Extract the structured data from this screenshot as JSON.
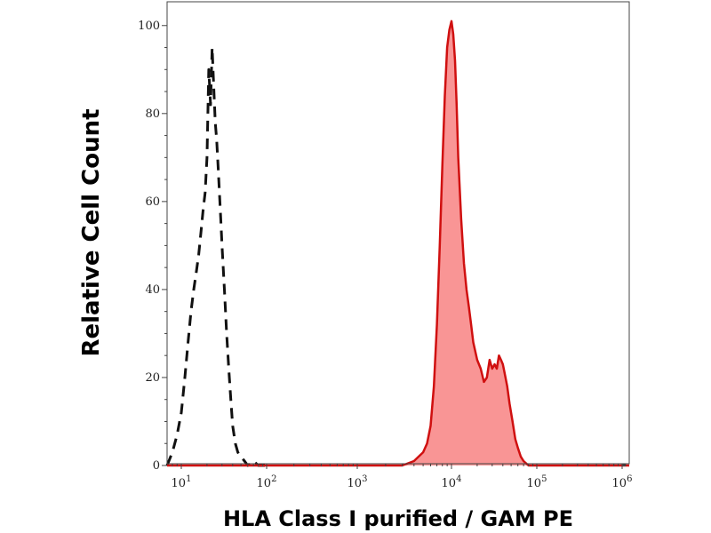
{
  "chart_data": {
    "type": "area",
    "xlabel": "HLA Class I purified / GAM PE",
    "ylabel": "Relative Cell Count",
    "xscale": "log",
    "xlim": [
      7,
      110000000
    ],
    "ylim": [
      0,
      105
    ],
    "x_tick_labels": [
      {
        "base": "10",
        "exp": "1",
        "value": 10
      },
      {
        "base": "10",
        "exp": "2",
        "value": 100
      },
      {
        "base": "10",
        "exp": "3",
        "value": 1000
      },
      {
        "base": "10",
        "exp": "4",
        "value": 10000
      },
      {
        "base": "10",
        "exp": "5",
        "value": 100000
      },
      {
        "base": "10",
        "exp": "6",
        "value": 1000000
      }
    ],
    "y_ticks": [
      0,
      20,
      40,
      60,
      80,
      100
    ],
    "grid": false,
    "series": [
      {
        "style": "dashed-line",
        "color": "#111111",
        "x": [
          7,
          8,
          9,
          10,
          11,
          12,
          13,
          14,
          15,
          16,
          17,
          18,
          19,
          20,
          21,
          22,
          23,
          24,
          25,
          26,
          27,
          28,
          29,
          30,
          32,
          34,
          36,
          38,
          40,
          43,
          46,
          50,
          55,
          60,
          70,
          80,
          90,
          100
        ],
        "values": [
          0,
          3,
          7,
          12,
          20,
          28,
          35,
          40,
          44,
          48,
          53,
          58,
          62,
          70,
          90,
          82,
          95,
          86,
          78,
          74,
          68,
          62,
          56,
          50,
          40,
          30,
          22,
          15,
          9,
          5,
          3,
          2,
          1,
          0,
          1,
          0,
          0,
          0
        ]
      },
      {
        "style": "filled",
        "color": "#d01010",
        "fill": "#f99595",
        "x": [
          7,
          100,
          1000,
          3000,
          4000,
          5000,
          5500,
          6000,
          6500,
          7000,
          7500,
          8000,
          8500,
          9000,
          9500,
          10000,
          10500,
          11000,
          11500,
          12000,
          13000,
          14000,
          15000,
          16000,
          17000,
          18000,
          20000,
          22000,
          24000,
          26000,
          28000,
          30000,
          32000,
          34000,
          36000,
          38000,
          40000,
          42000,
          45000,
          48000,
          52000,
          56000,
          60000,
          65000,
          70000,
          80000,
          90000,
          100000,
          1000000,
          110000000
        ],
        "values": [
          0,
          0,
          0,
          0,
          1,
          3,
          5,
          9,
          18,
          32,
          50,
          68,
          84,
          95,
          99,
          101,
          98,
          92,
          82,
          70,
          56,
          46,
          40,
          36,
          32,
          28,
          24,
          22,
          19,
          20,
          24,
          22,
          23,
          22,
          25,
          24,
          23,
          21,
          18,
          14,
          10,
          6,
          4,
          2,
          1,
          0,
          0,
          0,
          0,
          0
        ]
      }
    ]
  }
}
